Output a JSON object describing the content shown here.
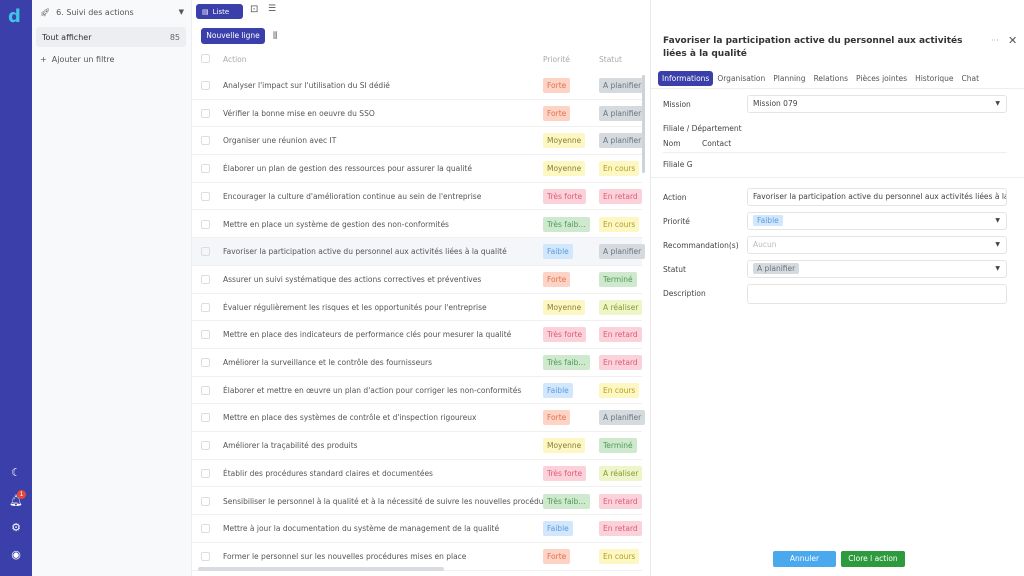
{
  "app": {
    "logo": "d",
    "notif_count": "1"
  },
  "rail_icons": [
    "moon-icon",
    "bell-icon",
    "gear-icon",
    "user-circle-icon"
  ],
  "filters": {
    "view_name": "6. Suivi des actions",
    "all_label": "Tout afficher",
    "all_count": "85",
    "add_filter": "Ajouter un filtre"
  },
  "toolbar": {
    "list_label": "Liste",
    "new_row": "Nouvelle ligne"
  },
  "table": {
    "headers": {
      "action": "Action",
      "priority": "Priorité",
      "status": "Statut"
    },
    "rows": [
      {
        "action": "Analyser l'impact sur l'utilisation du SI dédié",
        "priority": "Forte",
        "status": "A planifier"
      },
      {
        "action": "Vérifier la bonne mise en oeuvre du SSO",
        "priority": "Forte",
        "status": "A planifier"
      },
      {
        "action": "Organiser une réunion avec IT",
        "priority": "Moyenne",
        "status": "A planifier"
      },
      {
        "action": "Élaborer un plan de gestion des ressources pour assurer la qualité",
        "priority": "Moyenne",
        "status": "En cours"
      },
      {
        "action": "Encourager la culture d'amélioration continue au sein de l'entreprise",
        "priority": "Très forte",
        "status": "En retard"
      },
      {
        "action": "Mettre en place un système de gestion des non-conformités",
        "priority": "Très faib...",
        "status": "En cours"
      },
      {
        "action": "Favoriser la participation active du personnel aux activités liées à la qualité",
        "priority": "Faible",
        "status": "A planifier"
      },
      {
        "action": "Assurer un suivi systématique des actions correctives et préventives",
        "priority": "Forte",
        "status": "Terminé"
      },
      {
        "action": "Évaluer régulièrement les risques et les opportunités pour l'entreprise",
        "priority": "Moyenne",
        "status": "A réaliser"
      },
      {
        "action": "Mettre en place des indicateurs de performance clés pour mesurer la qualité",
        "priority": "Très forte",
        "status": "En retard"
      },
      {
        "action": "Améliorer la surveillance et le contrôle des fournisseurs",
        "priority": "Très faib...",
        "status": "En retard"
      },
      {
        "action": "Élaborer et mettre en œuvre un plan d'action pour corriger les non-conformités",
        "priority": "Faible",
        "status": "En cours"
      },
      {
        "action": "Mettre en place des systèmes de contrôle et d'inspection rigoureux",
        "priority": "Forte",
        "status": "A planifier"
      },
      {
        "action": "Améliorer la traçabilité des produits",
        "priority": "Moyenne",
        "status": "Terminé"
      },
      {
        "action": "Établir des procédures standard claires et documentées",
        "priority": "Très forte",
        "status": "A réaliser"
      },
      {
        "action": "Sensibiliser le personnel à la qualité et à la nécessité de suivre les nouvelles procédures",
        "priority": "Très faib...",
        "status": "En retard"
      },
      {
        "action": "Mettre à jour la documentation du système de management de la qualité",
        "priority": "Faible",
        "status": "En retard"
      },
      {
        "action": "Former le personnel sur les nouvelles procédures mises en place",
        "priority": "Forte",
        "status": "En cours"
      }
    ]
  },
  "tag_colors": {
    "Forte": [
      "#fdd3c6",
      "#e0704e"
    ],
    "Moyenne": [
      "#fdf7c3",
      "#8a8030"
    ],
    "Très forte": [
      "#fbd2da",
      "#e05a78"
    ],
    "Très faib...": [
      "#cfe9cf",
      "#4e9a55"
    ],
    "Faible": [
      "#d2e7fb",
      "#5a9ae0"
    ],
    "A planifier": [
      "#d4dade",
      "#6a7580"
    ],
    "En cours": [
      "#fdf7c3",
      "#b0a020"
    ],
    "En retard": [
      "#fbd2da",
      "#e05a78"
    ],
    "Terminé": [
      "#cfe9cf",
      "#4e9a55"
    ],
    "A réaliser": [
      "#eef5c8",
      "#8a9a30"
    ]
  },
  "detail": {
    "title": "Favoriser la participation active du personnel aux activités liées à la qualité",
    "tabs": [
      "Informations",
      "Organisation",
      "Planning",
      "Relations",
      "Pièces jointes",
      "Historique",
      "Chat"
    ],
    "mission_label": "Mission",
    "mission_value": "Mission 079",
    "filiale_label": "Filiale / Département",
    "col_nom": "Nom",
    "col_contact": "Contact",
    "filiale_value": "Filiale G",
    "action_label": "Action",
    "action_value": "Favoriser la participation active du personnel aux activités liées à la qualité",
    "priority_label": "Priorité",
    "priority_value": "Faible",
    "reco_label": "Recommandation(s)",
    "reco_placeholder": "Aucun",
    "status_label": "Statut",
    "status_value": "A planifier",
    "desc_label": "Description",
    "desc_value": "",
    "cancel": "Annuler",
    "close_action": "Clore l action"
  }
}
